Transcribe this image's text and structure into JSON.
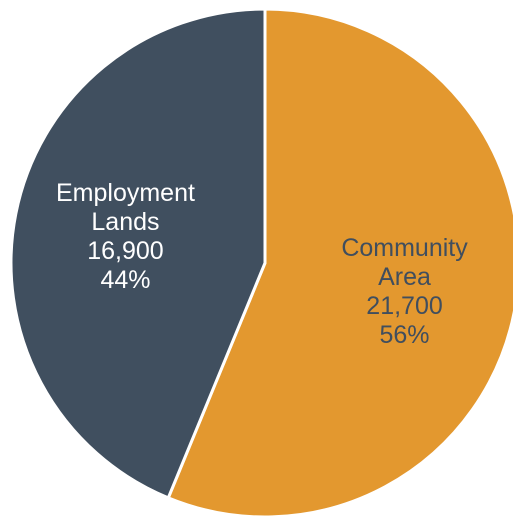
{
  "chart_data": {
    "type": "pie",
    "slices": [
      {
        "label_lines": [
          "Community",
          "Area"
        ],
        "value": 21700,
        "value_text": "21,700",
        "percent_text": "56%",
        "color": "#E3982F",
        "label_color": "#404E5E"
      },
      {
        "label_lines": [
          "Employment",
          "Lands"
        ],
        "value": 16900,
        "value_text": "16,900",
        "percent_text": "44%",
        "color": "#404F5F",
        "label_color": "#FFFFFF"
      }
    ],
    "start_angle_deg": 0,
    "direction": "clockwise",
    "legend": "none"
  }
}
